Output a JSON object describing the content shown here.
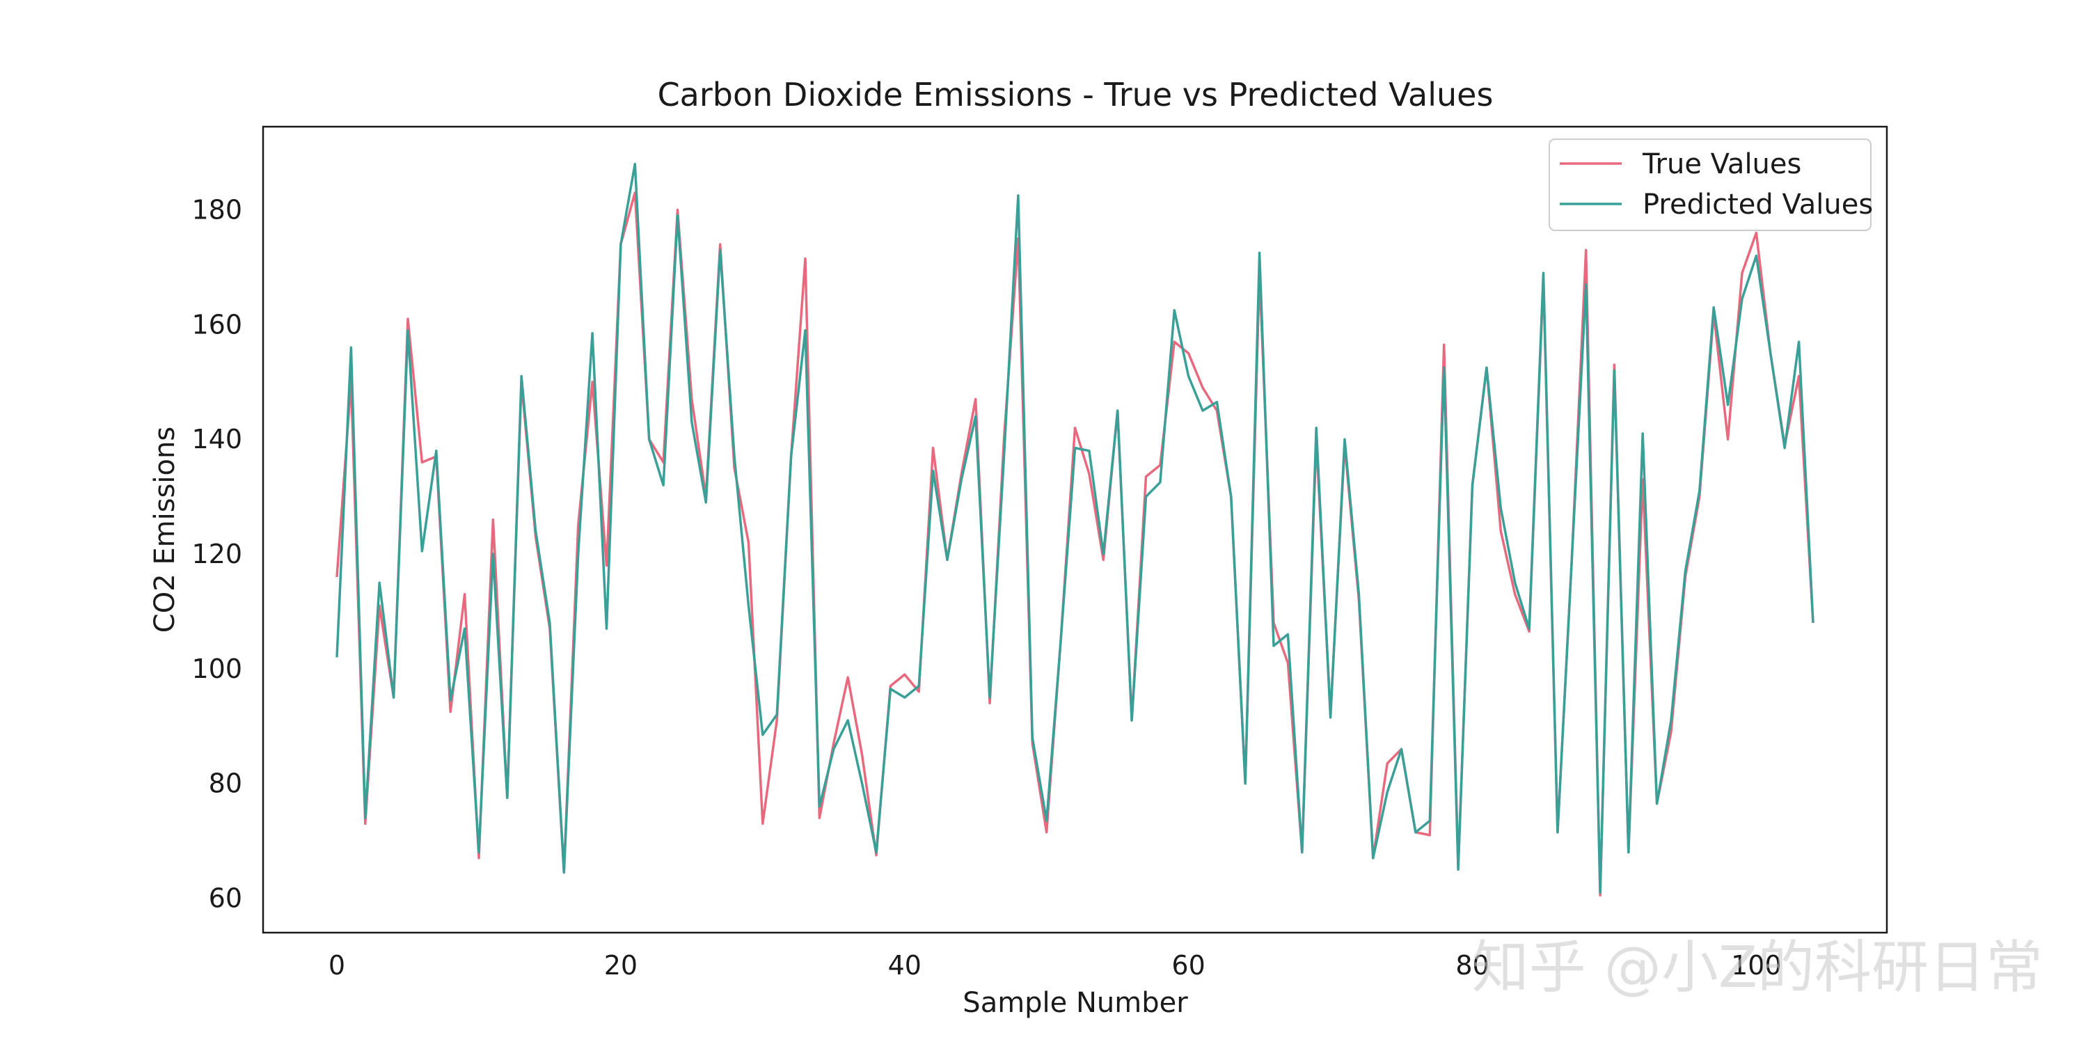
{
  "chart_data": {
    "type": "line",
    "title": "Carbon Dioxide Emissions - True vs Predicted Values",
    "xlabel": "Sample Number",
    "ylabel": "CO2 Emissions",
    "xlim": [
      -5.2,
      109.2
    ],
    "ylim": [
      54,
      194.5
    ],
    "xticks": [
      0,
      20,
      40,
      60,
      80,
      100
    ],
    "yticks": [
      60,
      80,
      100,
      120,
      140,
      160,
      180
    ],
    "grid": false,
    "legend_position": "top-right",
    "series": [
      {
        "name": "True Values",
        "color": "#e8697e",
        "values": [
          116,
          150,
          73,
          111,
          95,
          161,
          136,
          137,
          92.5,
          113,
          67,
          126,
          77.5,
          150,
          123,
          107,
          64.5,
          125,
          150,
          118,
          174,
          183,
          140,
          136,
          180,
          147,
          130,
          174,
          135,
          122,
          73,
          91,
          137,
          171.5,
          74,
          87,
          98.5,
          85,
          67.5,
          97,
          99,
          96,
          138.5,
          119,
          134,
          147,
          94,
          140,
          175,
          87,
          71.5,
          105,
          142,
          134,
          119,
          145,
          91,
          133.5,
          135.5,
          157,
          155,
          149,
          145,
          130,
          80,
          169,
          108,
          101,
          68,
          140,
          92,
          139,
          112,
          67,
          83.5,
          86,
          71.5,
          71,
          156.5,
          65.5,
          132,
          152.5,
          124,
          113,
          106.5,
          168,
          71.5,
          119,
          173,
          60.5,
          153,
          68,
          133,
          76.5,
          89,
          116,
          130,
          162,
          140,
          169,
          176,
          155,
          139,
          151,
          108
        ]
      },
      {
        "name": "Predicted Values",
        "color": "#3aa097",
        "values": [
          102,
          156,
          74,
          115,
          95,
          159,
          120.5,
          138,
          94.5,
          107,
          68,
          120,
          77.5,
          151,
          124,
          108,
          64.5,
          120,
          158.5,
          107,
          174,
          188,
          140,
          132,
          179,
          143,
          129,
          173,
          137,
          111,
          88.5,
          92,
          137,
          159,
          76,
          86,
          91,
          80,
          68,
          96.5,
          95,
          97,
          134.5,
          119,
          133,
          144,
          95,
          137,
          182.5,
          88,
          73.5,
          105,
          138.5,
          138,
          120,
          145,
          91,
          130,
          132.5,
          162.5,
          151,
          145,
          146.5,
          130,
          80,
          172.5,
          104,
          106,
          68,
          142,
          91.5,
          140,
          113,
          67,
          78.5,
          86,
          71.5,
          73.5,
          152.5,
          65,
          132,
          152.5,
          128,
          115,
          107,
          169,
          71.5,
          119,
          167,
          61,
          152,
          68,
          141,
          76.5,
          91,
          117,
          131,
          163,
          146,
          164.5,
          172,
          155,
          138.5,
          157,
          108
        ]
      }
    ],
    "watermark": "知乎 @小Z的科研日常"
  }
}
